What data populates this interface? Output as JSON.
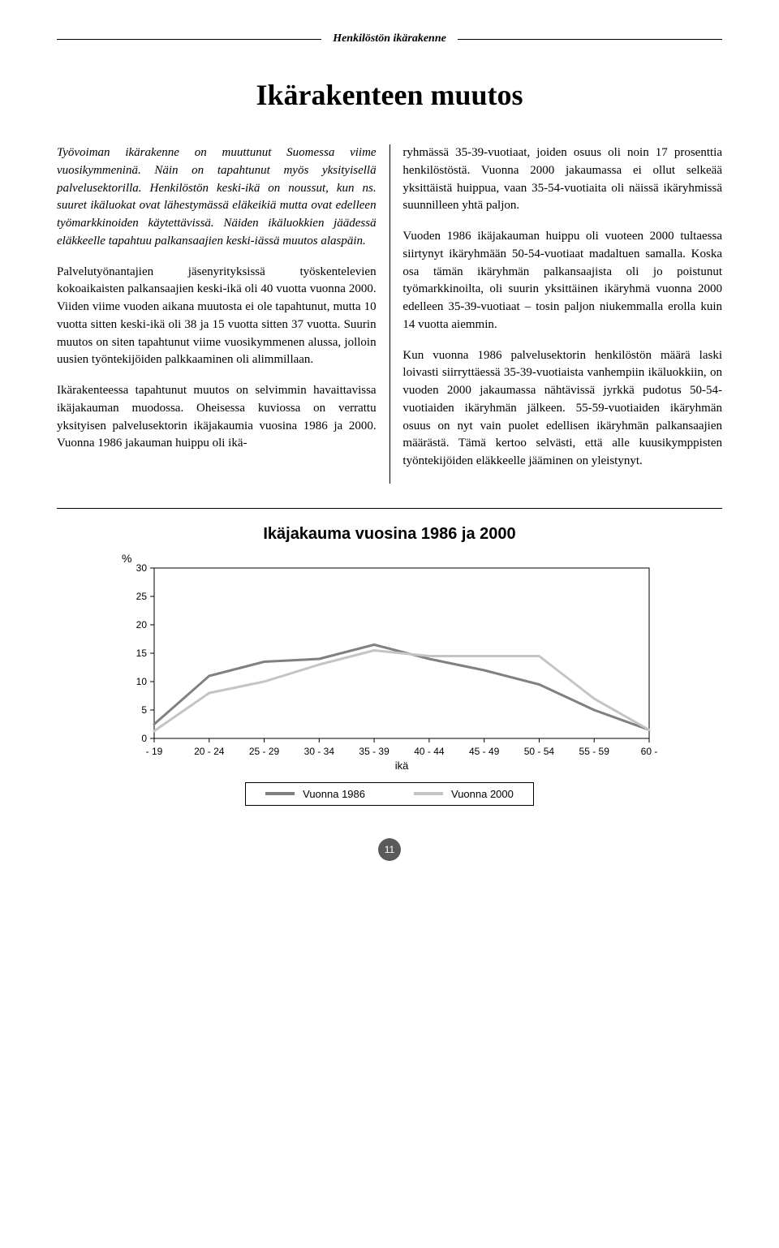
{
  "section_header": "Henkilöstön ikärakenne",
  "title": "Ikärakenteen muutos",
  "left_col": {
    "p1_italic": "Työvoiman ikärakenne on muuttunut Suomessa viime vuosikymmeninä. Näin on tapahtunut myös yksityisellä palvelusektorilla. Henkilöstön keski-ikä on noussut, kun ns. suuret ikäluokat ovat lähestymässä eläkeikiä mutta ovat edelleen työmarkkinoiden käytettävissä. Näiden ikäluokkien jäädessä eläkkeelle tapahtuu palkansaajien keski-iässä muutos alaspäin.",
    "p2": "Palvelutyönantajien jäsenyrityksissä työskentelevien kokoaikaisten palkansaajien keski-ikä oli 40 vuotta vuonna 2000. Viiden viime vuoden aikana muutosta ei ole tapahtunut, mutta 10 vuotta sitten keski-ikä oli 38 ja 15 vuotta sitten 37 vuotta. Suurin muutos on siten tapahtunut viime vuosikymmenen alussa, jolloin uusien työntekijöiden palkkaaminen oli alimmillaan.",
    "p3": "Ikärakenteessa tapahtunut muutos on selvimmin havaittavissa ikäjakauman muodossa. Oheisessa kuviossa on verrattu yksityisen palvelusektorin ikäjakaumia vuosina 1986 ja 2000. Vuonna 1986 jakauman huippu oli ikä-"
  },
  "right_col": {
    "p1": "ryhmässä 35-39-vuotiaat, joiden osuus oli noin 17 prosenttia henkilöstöstä. Vuonna 2000 jakaumassa ei ollut selkeää yksittäistä huippua, vaan 35-54-vuotiaita oli näissä ikäryhmissä suunnilleen yhtä paljon.",
    "p2": "Vuoden 1986 ikäjakauman huippu oli vuoteen 2000 tultaessa siirtynyt ikäryhmään 50-54-vuotiaat madaltuen samalla. Koska osa tämän ikäryhmän palkansaajista oli jo poistunut työmarkkinoilta, oli suurin yksittäinen ikäryhmä vuonna 2000 edelleen 35-39-vuotiaat – tosin paljon niukemmalla erolla kuin 14 vuotta aiemmin.",
    "p3": "Kun vuonna 1986 palvelusektorin henkilöstön määrä laski loivasti siirryttäessä 35-39-vuotiaista vanhempiin ikäluokkiin, on vuoden 2000 jakaumassa nähtävissä jyrkkä pudotus 50-54-vuotiaiden ikäryhmän jälkeen. 55-59-vuotiaiden ikäryhmän osuus on nyt vain puolet edellisen ikäryhmän palkansaajien määrästä. Tämä kertoo selvästi, että alle kuusikymppisten työntekijöiden eläkkeelle jääminen on yleistynyt."
  },
  "chart": {
    "title": "Ikäjakauma vuosina 1986 ja 2000",
    "y_unit": "%",
    "categories": [
      "- 19",
      "20 - 24",
      "25 - 29",
      "30 - 34",
      "35 - 39",
      "40 - 44",
      "45 - 49",
      "50 - 54",
      "55 - 59",
      "60 -"
    ],
    "x_axis_label": "ikä",
    "ylim": [
      0,
      30
    ],
    "ytick_step": 5,
    "series": [
      {
        "name": "Vuonna 1986",
        "color": "#808080",
        "stroke_width": 3,
        "values": [
          2.5,
          11,
          13.5,
          14,
          16.5,
          14,
          12,
          9.5,
          5,
          1.5
        ]
      },
      {
        "name": "Vuonna 2000",
        "color": "#c4c4c4",
        "stroke_width": 3,
        "values": [
          1.3,
          8,
          10,
          13,
          15.5,
          14.5,
          14.5,
          14.5,
          7,
          1.5
        ]
      }
    ],
    "background_color": "#ffffff",
    "border_color": "#000000",
    "axis_fontsize": 12
  },
  "page_number": "11"
}
